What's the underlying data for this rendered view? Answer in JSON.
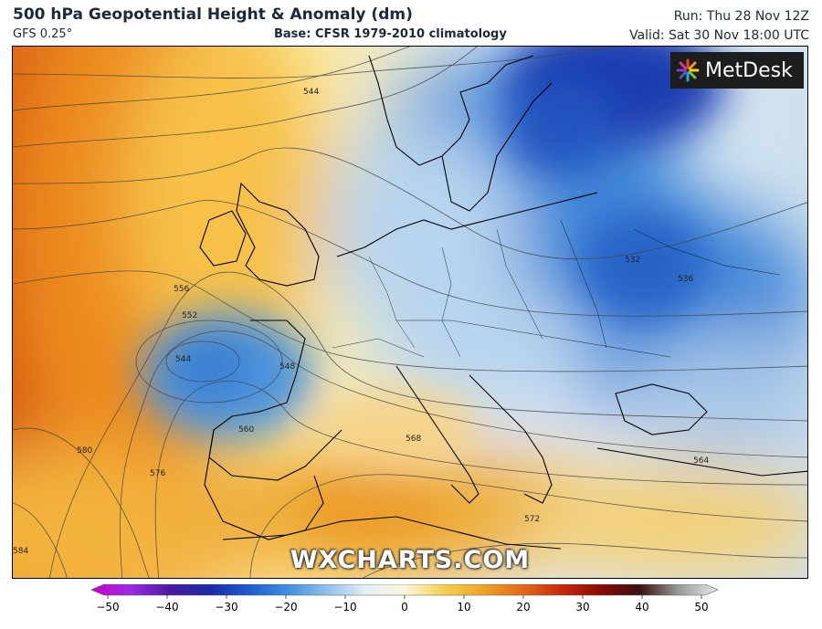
{
  "header": {
    "title": "500 hPa Geopotential Height & Anomaly (dm)",
    "model": "GFS 0.25°",
    "base": "Base: CFSR 1979-2010 climatology",
    "run": "Run: Thu 28 Nov 12Z",
    "valid": "Valid: Sat 30 Nov 18:00 UTC"
  },
  "logo": {
    "text": "MetDesk",
    "icon": "metdesk-starburst-icon"
  },
  "watermark": "WXCHARTS.COM",
  "contour_labels": [
    "544",
    "548",
    "552",
    "556",
    "560",
    "564",
    "568",
    "572",
    "576",
    "580",
    "584",
    "532",
    "536",
    "544"
  ],
  "colorbar": {
    "ticks": [
      "−50",
      "−40",
      "−30",
      "−20",
      "−10",
      "0",
      "10",
      "20",
      "30",
      "40",
      "50"
    ],
    "min": -50,
    "max": 50,
    "colors": [
      "#d100d1",
      "#9a2be0",
      "#4b1aa0",
      "#1a2aa8",
      "#1e5ad0",
      "#3d8fe0",
      "#8ec0ea",
      "#e4eef6",
      "#fbf6dc",
      "#f5d050",
      "#eea428",
      "#e26a18",
      "#c82a0c",
      "#8a0a06",
      "#3a1010",
      "#9a9a9a",
      "#e8e8e8"
    ]
  },
  "legend_colors": {
    "neg_extreme": "#d100d1",
    "neutral": "#f2f4f4",
    "pos_extreme": "#e8e8e8"
  }
}
